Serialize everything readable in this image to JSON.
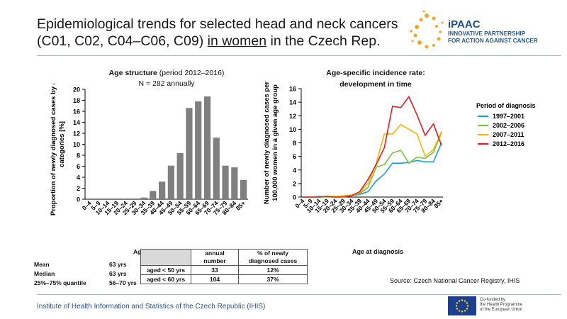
{
  "header": {
    "title_line1": "Epidemiological trends for selected head and neck cancers",
    "title_line2_pre": "(C01, C02, C04–C06, C09) ",
    "title_line2_u": "in women",
    "title_line2_post": " in the Czech Rep."
  },
  "logo": {
    "brand": "iPAAC",
    "line1": "INNOVATIVE PARTNERSHIP",
    "line2": "FOR ACTION AGAINST CANCER"
  },
  "chart_data": [
    {
      "type": "bar",
      "title": "Age structure",
      "title_suffix": " (period 2012–2016)",
      "subtitle": "N = 282 annually",
      "ylabel": "Proportion of newly diagnosed cases by age categories [%]",
      "xlabel": "Age at diagnosis",
      "ylim": [
        0,
        20
      ],
      "yticks": [
        0,
        2,
        4,
        6,
        8,
        10,
        12,
        14,
        16,
        18,
        20
      ],
      "categories": [
        "0–4",
        "5–9",
        "10–14",
        "15–19",
        "20–24",
        "25–29",
        "30–34",
        "35–39",
        "40–44",
        "45–49",
        "50–54",
        "55–59",
        "60–64",
        "65–69",
        "70–74",
        "75–79",
        "80–84",
        "85+"
      ],
      "values": [
        0,
        0,
        0,
        0,
        0,
        0,
        0.3,
        1.5,
        3.2,
        6.1,
        8.4,
        16.6,
        17.8,
        18.7,
        11.2,
        6.1,
        5.8,
        3.5
      ],
      "bar_color": "#7f7f7f"
    },
    {
      "type": "line",
      "title": "Age-specific incidence rate:",
      "title2": "development in time",
      "ylabel": "Number of newly diagnosed cases per 100,000 women in a given age group",
      "xlabel": "Age at diagnosis",
      "ylim": [
        0,
        16
      ],
      "yticks": [
        0,
        2,
        4,
        6,
        8,
        10,
        12,
        14,
        16
      ],
      "legend_title": "Period of diagnosis",
      "legend_position": "right",
      "categories": [
        "0–4",
        "5–9",
        "10–14",
        "15–19",
        "20–24",
        "25–29",
        "30–34",
        "35–39",
        "40–44",
        "45–49",
        "50–54",
        "55–59",
        "60–64",
        "65–69",
        "70–74",
        "75–79",
        "80–84",
        "85+"
      ],
      "series": [
        {
          "name": "1997–2001",
          "color": "#1a9fd6",
          "values": [
            0,
            0,
            0.1,
            0,
            0,
            0.1,
            0.2,
            0.4,
            0.8,
            2.4,
            3.4,
            5.0,
            5.0,
            5.1,
            5.4,
            5.2,
            5.2,
            8.0
          ]
        },
        {
          "name": "2002–2006",
          "color": "#7cc242",
          "values": [
            0,
            0,
            0,
            0,
            0.1,
            0.1,
            0.2,
            0.5,
            1.4,
            4.4,
            4.8,
            6.5,
            6.9,
            5.0,
            5.9,
            5.7,
            6.6,
            9.5
          ]
        },
        {
          "name": "2007–2011",
          "color": "#f5b700",
          "values": [
            0,
            0,
            0,
            0.1,
            0.1,
            0.2,
            0.3,
            0.7,
            2.0,
            5.0,
            9.3,
            9.3,
            10.7,
            10.0,
            9.3,
            6.0,
            7.0,
            9.7
          ]
        },
        {
          "name": "2012–2016",
          "color": "#e31e24",
          "values": [
            0,
            0,
            0,
            0.1,
            0,
            0,
            0.2,
            0.8,
            2.6,
            4.8,
            7.3,
            13.4,
            13.2,
            14.8,
            12.1,
            9.1,
            10.8,
            7.6
          ]
        }
      ]
    }
  ],
  "stats": {
    "rows": [
      {
        "k": "Mean",
        "v": "63 yrs"
      },
      {
        "k": "Median",
        "v": "63 yrs"
      },
      {
        "k": "25%–75% quantile",
        "v": "56–70 yrs"
      }
    ],
    "covered_label": "Ag"
  },
  "age_table": {
    "h1": "annual number",
    "h2": "% of newly diagnosed cases",
    "rows": [
      {
        "label": "aged < 50 yrs",
        "n": "33",
        "pct": "12%"
      },
      {
        "label": "aged < 60 yrs",
        "n": "104",
        "pct": "37%"
      }
    ]
  },
  "source": "Source: Czech National Cancer Registry, IHIS",
  "footer": "Institute of Health Information and Statistics of the Czech Republic (IHIS)",
  "eu": {
    "l1": "Co-funded by",
    "l2": "the Health Programme",
    "l3": "of the European Union"
  }
}
